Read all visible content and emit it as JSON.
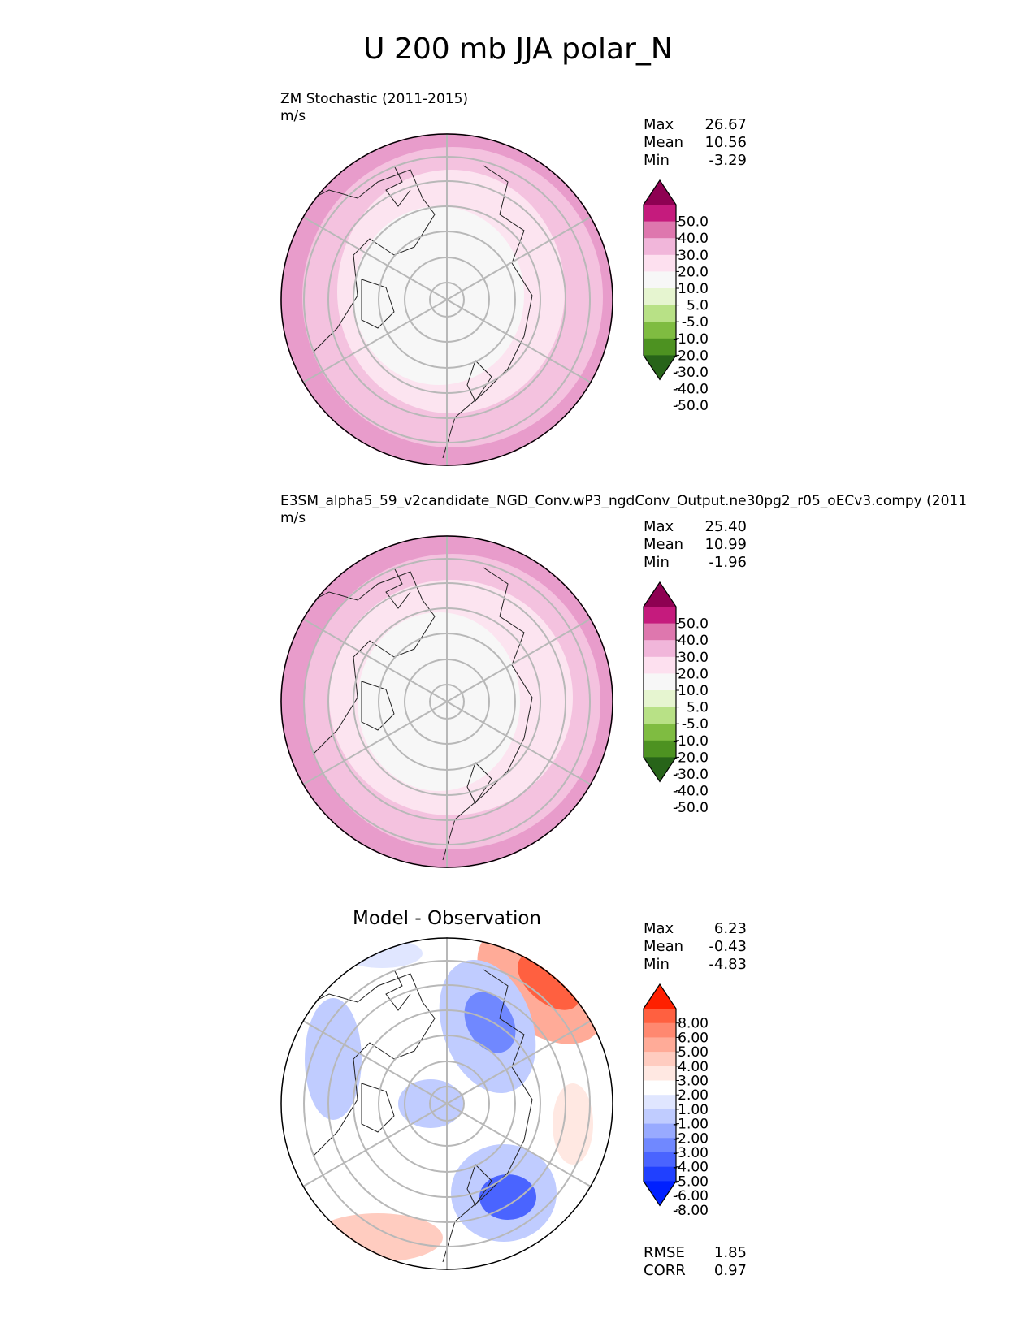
{
  "title": "U 200 mb JJA polar_N",
  "panels": [
    {
      "title": "ZM Stochastic (2011-2015)",
      "units": "m/s",
      "stats": [
        {
          "label": "Max",
          "value": "26.67"
        },
        {
          "label": "Mean",
          "value": "10.56"
        },
        {
          "label": "Min",
          "value": "-3.29"
        }
      ]
    },
    {
      "title": "E3SM_alpha5_59_v2candidate_NGD_Conv.wP3_ngdConv_Output.ne30pg2_r05_oECv3.compy (2011",
      "units": "m/s",
      "stats": [
        {
          "label": "Max",
          "value": "25.40"
        },
        {
          "label": "Mean",
          "value": "10.99"
        },
        {
          "label": "Min",
          "value": "-1.96"
        }
      ]
    },
    {
      "title": "Model - Observation",
      "stats": [
        {
          "label": "Max",
          "value": "6.23"
        },
        {
          "label": "Mean",
          "value": "-0.43"
        },
        {
          "label": "Min",
          "value": "-4.83"
        }
      ],
      "metrics": [
        {
          "label": "RMSE",
          "value": "1.85"
        },
        {
          "label": "CORR",
          "value": "0.97"
        }
      ]
    }
  ],
  "colorbars": {
    "field": {
      "ticks": [
        "50.0",
        "40.0",
        "30.0",
        "20.0",
        "10.0",
        "5.0",
        "-5.0",
        "-10.0",
        "-20.0",
        "-30.0",
        "-40.0",
        "-50.0"
      ],
      "colors": [
        "#8e0152",
        "#c51b7d",
        "#de77ae",
        "#f1b6da",
        "#fde0ef",
        "#f7f7f7",
        "#e6f5d0",
        "#b8e186",
        "#7fbc41",
        "#4d9221",
        "#276419"
      ]
    },
    "diff": {
      "ticks": [
        "8.00",
        "6.00",
        "5.00",
        "4.00",
        "3.00",
        "2.00",
        "1.00",
        "-1.00",
        "-2.00",
        "-3.00",
        "-4.00",
        "-5.00",
        "-6.00",
        "-8.00"
      ],
      "colors": [
        "#ff2000",
        "#ff6040",
        "#ff8870",
        "#ffab98",
        "#ffccc0",
        "#ffe8e2",
        "#ffffff",
        "#e0e6ff",
        "#c0ccff",
        "#98aaff",
        "#7088ff",
        "#4a64ff",
        "#2040ff",
        "#0020ff"
      ]
    }
  }
}
